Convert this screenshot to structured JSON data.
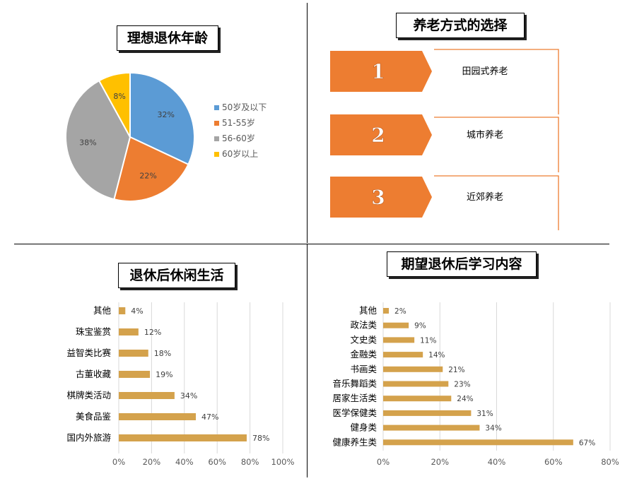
{
  "colors": {
    "blue": "#5b9bd5",
    "orange": "#ed7d31",
    "gray": "#a5a5a5",
    "yellow": "#ffc000",
    "bar": "#d4a24c",
    "arrow": "#ed7d31"
  },
  "chart_data": [
    {
      "type": "pie",
      "title": "理想退休年龄",
      "labels": [
        "50岁及以下",
        "51-55岁",
        "56-60岁",
        "60岁以上"
      ],
      "values": [
        32,
        22,
        38,
        8
      ],
      "value_labels": [
        "32%",
        "22%",
        "38%",
        "8%"
      ],
      "legend": "right"
    },
    {
      "type": "bar",
      "orientation": "horizontal",
      "title": "退休后休闲生活",
      "categories": [
        "其他",
        "珠宝鉴赏",
        "益智类比赛",
        "古董收藏",
        "棋牌类活动",
        "美食品鉴",
        "国内外旅游"
      ],
      "values": [
        4,
        12,
        18,
        19,
        34,
        47,
        78
      ],
      "value_labels": [
        "4%",
        "12%",
        "18%",
        "19%",
        "34%",
        "47%",
        "78%"
      ],
      "xlim": [
        0,
        100
      ],
      "tick_labels": [
        "0%",
        "20%",
        "40%",
        "60%",
        "80%",
        "100%"
      ],
      "grid": true
    },
    {
      "type": "bar",
      "orientation": "horizontal",
      "title": "期望退休后学习内容",
      "categories": [
        "其他",
        "政法类",
        "文史类",
        "金融类",
        "书画类",
        "音乐舞蹈类",
        "居家生活类",
        "医学保健类",
        "健身类",
        "健康养生类"
      ],
      "values": [
        2,
        9,
        11,
        14,
        21,
        23,
        24,
        31,
        34,
        67
      ],
      "value_labels": [
        "2%",
        "9%",
        "11%",
        "14%",
        "21%",
        "23%",
        "24%",
        "31%",
        "34%",
        "67%"
      ],
      "xlim": [
        0,
        80
      ],
      "tick_labels": [
        "0%",
        "20%",
        "40%",
        "60%",
        "80%"
      ],
      "grid": true
    }
  ],
  "retirement": {
    "title": "养老方式的选择",
    "options": [
      {
        "num": "1",
        "label": "田园式养老"
      },
      {
        "num": "2",
        "label": "城市养老"
      },
      {
        "num": "3",
        "label": "近郊养老"
      }
    ]
  }
}
